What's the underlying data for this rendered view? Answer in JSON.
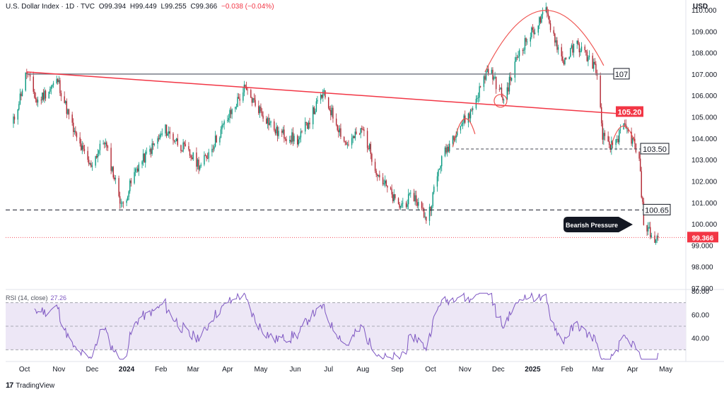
{
  "header": {
    "symbol": "U.S. Dollar Index · 1D · TVC",
    "open": "O99.394",
    "high": "H99.449",
    "low": "L99.255",
    "close": "C99.366",
    "change": "−0.038 (−0.04%)"
  },
  "currency_label": "USD",
  "rsi_header": {
    "label": "RSI (14, close)",
    "value": "27.26"
  },
  "brand": {
    "name": "TradingView"
  },
  "colors": {
    "up": "#089981",
    "down": "#b22833",
    "trend": "#f23645",
    "arc": "#ef5350",
    "level": "#787b86",
    "rsi": "#7e57c2",
    "rsi_band": "#ede7f6"
  },
  "chart_data": [
    {
      "type": "candlestick",
      "ylim": [
        97,
        110
      ],
      "y_ticks": [
        "110.000",
        "109.000",
        "108.000",
        "107.000",
        "106.000",
        "105.000",
        "104.000",
        "103.000",
        "102.000",
        "101.000",
        "100.000",
        "99.000",
        "98.000",
        "97.000"
      ],
      "x_ticks": [
        "Oct",
        "Nov",
        "Dec",
        "2024",
        "Feb",
        "Mar",
        "Apr",
        "May",
        "Jun",
        "Jul",
        "Aug",
        "Sep",
        "Oct",
        "Nov",
        "Dec",
        "2025",
        "Feb",
        "Mar",
        "Apr",
        "May"
      ],
      "price_path": [
        [
          "2023-09-20",
          104.6
        ],
        [
          "2023-10-03",
          107.1
        ],
        [
          "2023-10-12",
          105.7
        ],
        [
          "2023-10-31",
          106.7
        ],
        [
          "2023-11-15",
          104.2
        ],
        [
          "2023-11-29",
          102.7
        ],
        [
          "2023-12-12",
          103.9
        ],
        [
          "2023-12-28",
          100.8
        ],
        [
          "2024-01-10",
          102.6
        ],
        [
          "2024-02-05",
          104.4
        ],
        [
          "2024-03-08",
          102.7
        ],
        [
          "2024-04-16",
          106.3
        ],
        [
          "2024-05-15",
          104.3
        ],
        [
          "2024-06-04",
          103.9
        ],
        [
          "2024-06-26",
          106.1
        ],
        [
          "2024-07-17",
          103.7
        ],
        [
          "2024-08-01",
          104.4
        ],
        [
          "2024-08-14",
          102.4
        ],
        [
          "2024-09-02",
          100.8
        ],
        [
          "2024-09-16",
          101.3
        ],
        [
          "2024-09-28",
          100.2
        ],
        [
          "2024-10-10",
          102.9
        ],
        [
          "2024-10-24",
          104.4
        ],
        [
          "2024-11-06",
          105.2
        ],
        [
          "2024-11-22",
          107.3
        ],
        [
          "2024-12-06",
          105.8
        ],
        [
          "2024-12-20",
          108.1
        ],
        [
          "2025-01-13",
          109.9
        ],
        [
          "2025-01-28",
          107.6
        ],
        [
          "2025-02-10",
          108.4
        ],
        [
          "2025-02-27",
          107.3
        ],
        [
          "2025-03-05",
          104.2
        ],
        [
          "2025-03-11",
          103.5
        ],
        [
          "2025-03-25",
          104.5
        ],
        [
          "2025-04-02",
          103.8
        ],
        [
          "2025-04-07",
          102.9
        ],
        [
          "2025-04-11",
          100.1
        ],
        [
          "2025-04-21",
          99.2
        ],
        [
          "2025-04-24",
          99.37
        ]
      ],
      "levels": [
        {
          "label": "107",
          "value": 107.0,
          "style": "solid"
        },
        {
          "label": "105.20",
          "value": 105.2,
          "style": "trendline"
        },
        {
          "label": "103.50",
          "value": 103.5,
          "style": "dashed"
        },
        {
          "label": "100.65",
          "value": 100.65,
          "style": "dashed"
        },
        {
          "label": "99.366",
          "value": 99.366,
          "style": "last-price"
        }
      ],
      "trendline": {
        "from": [
          "2023-10-03",
          107.1
        ],
        "to": [
          "2025-03-05",
          105.2
        ]
      },
      "annotations": [
        {
          "text": "Bearish Pressure"
        }
      ]
    },
    {
      "type": "line",
      "name": "RSI (14, close)",
      "ylim": [
        20,
        80
      ],
      "y_ticks": [
        "80.00",
        "60.00",
        "40.00"
      ],
      "bands": [
        70,
        50,
        30
      ],
      "last_value": 27.26
    }
  ]
}
